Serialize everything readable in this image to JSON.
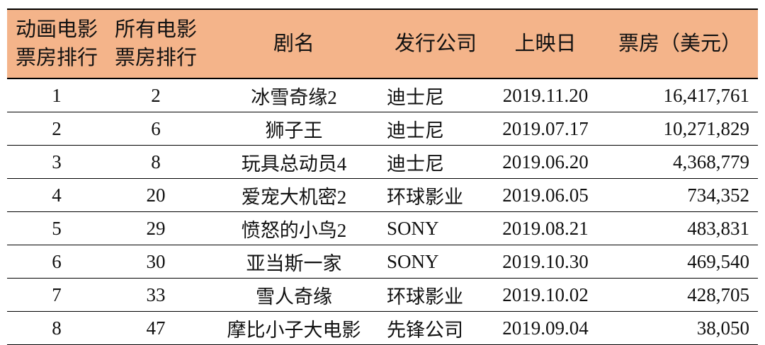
{
  "table": {
    "headers": [
      "动画电影票房排行",
      "所有电影票房排行",
      "剧名",
      "发行公司",
      "上映日",
      "票房（美元）"
    ],
    "rows": [
      [
        "1",
        "2",
        "冰雪奇缘2",
        "迪士尼",
        "2019.11.20",
        "16,417,761"
      ],
      [
        "2",
        "6",
        "狮子王",
        "迪士尼",
        "2019.07.17",
        "10,271,829"
      ],
      [
        "3",
        "8",
        "玩具总动员4",
        "迪士尼",
        "2019.06.20",
        "4,368,779"
      ],
      [
        "4",
        "20",
        "爱宠大机密2",
        "环球影业",
        "2019.06.05",
        "734,352"
      ],
      [
        "5",
        "29",
        "愤怒的小鸟2",
        "SONY",
        "2019.08.21",
        "483,831"
      ],
      [
        "6",
        "30",
        "亚当斯一家",
        "SONY",
        "2019.10.30",
        "469,540"
      ],
      [
        "7",
        "33",
        "雪人奇缘",
        "环球影业",
        "2019.10.02",
        "428,705"
      ],
      [
        "8",
        "47",
        "摩比小子大电影",
        "先锋公司",
        "2019.09.04",
        "38,050"
      ]
    ]
  }
}
